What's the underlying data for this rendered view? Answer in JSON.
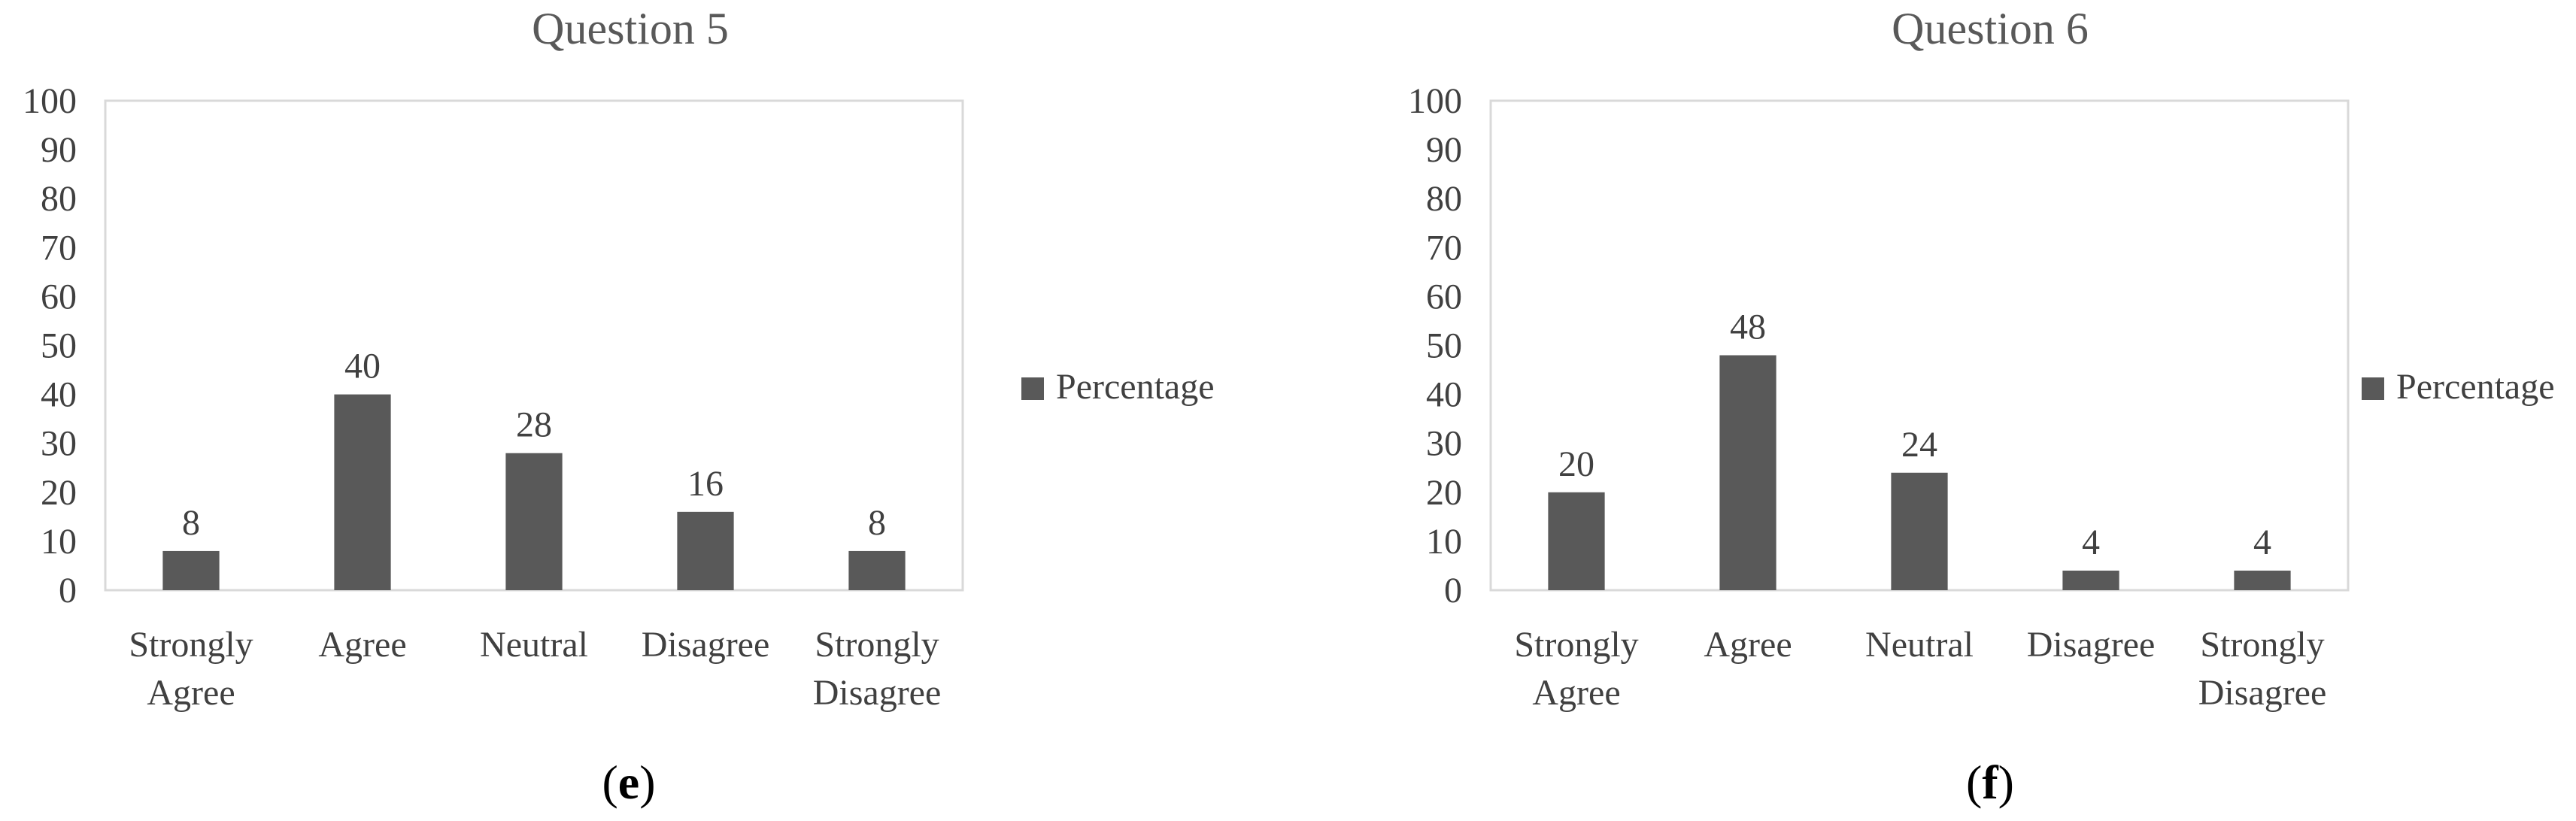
{
  "colors": {
    "bar": "#595959",
    "frame": "#d9d9d9",
    "text": "#404040"
  },
  "chart_data": [
    {
      "type": "bar",
      "title": "Question 5",
      "panel_label": "e",
      "categories": [
        [
          "Strongly",
          "Agree"
        ],
        [
          "Agree"
        ],
        [
          "Neutral"
        ],
        [
          "Disagree"
        ],
        [
          "Strongly",
          "Disagree"
        ]
      ],
      "series": [
        {
          "name": "Percentage",
          "values": [
            8,
            40,
            28,
            16,
            8
          ]
        }
      ],
      "data_labels": [
        "8",
        "40",
        "28",
        "16",
        "8"
      ],
      "ylim": [
        0,
        100
      ],
      "yticks": [
        "0",
        "10",
        "20",
        "30",
        "40",
        "50",
        "60",
        "70",
        "80",
        "90",
        "100"
      ],
      "xlabel": "",
      "ylabel": "",
      "grid": false,
      "legend": {
        "position": "right",
        "entries": [
          "Percentage"
        ]
      }
    },
    {
      "type": "bar",
      "title": "Question 6",
      "panel_label": "f",
      "categories": [
        [
          "Strongly",
          "Agree"
        ],
        [
          "Agree"
        ],
        [
          "Neutral"
        ],
        [
          "Disagree"
        ],
        [
          "Strongly",
          "Disagree"
        ]
      ],
      "series": [
        {
          "name": "Percentage",
          "values": [
            20,
            48,
            24,
            4,
            4
          ]
        }
      ],
      "data_labels": [
        "20",
        "48",
        "24",
        "4",
        "4"
      ],
      "ylim": [
        0,
        100
      ],
      "yticks": [
        "0",
        "10",
        "20",
        "30",
        "40",
        "50",
        "60",
        "70",
        "80",
        "90",
        "100"
      ],
      "xlabel": "",
      "ylabel": "",
      "grid": false,
      "legend": {
        "position": "right",
        "entries": [
          "Percentage"
        ]
      }
    }
  ]
}
